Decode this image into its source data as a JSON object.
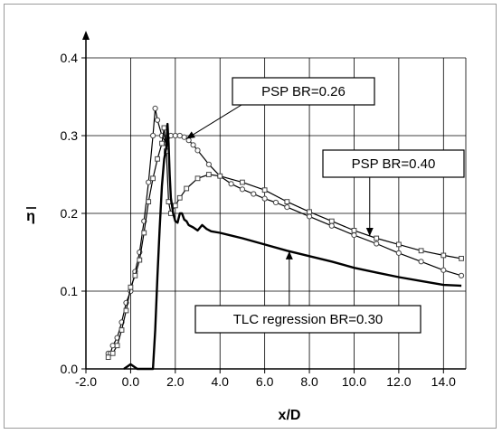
{
  "chart_data": {
    "type": "line",
    "title": "",
    "xlabel": "x/D",
    "ylabel": "η",
    "xlim": [
      -2.0,
      15.0
    ],
    "ylim": [
      0.0,
      0.4
    ],
    "grid": true,
    "xticks": [
      "-2.0",
      "0.0",
      "2.0",
      "4.0",
      "6.0",
      "8.0",
      "10.0",
      "12.0",
      "14.0"
    ],
    "yticks": [
      "0.0",
      "0.1",
      "0.2",
      "0.3",
      "0.4"
    ],
    "series": [
      {
        "name": "PSP BR=0.26",
        "marker": "circle",
        "x": [
          -1.0,
          -0.9,
          -0.8,
          -0.6,
          -0.4,
          -0.2,
          0.0,
          0.2,
          0.4,
          0.6,
          0.8,
          1.0,
          1.1,
          1.2,
          1.4,
          1.6,
          1.8,
          2.0,
          2.2,
          2.4,
          2.6,
          2.8,
          3.0,
          3.5,
          4.0,
          4.5,
          5.0,
          5.5,
          6.0,
          6.5,
          7.0,
          8.0,
          9.0,
          10.0,
          11.0,
          12.0,
          13.0,
          14.0,
          14.8
        ],
        "y": [
          0.02,
          0.02,
          0.03,
          0.04,
          0.06,
          0.085,
          0.1,
          0.125,
          0.15,
          0.19,
          0.24,
          0.3,
          0.335,
          0.32,
          0.3,
          0.29,
          0.3,
          0.3,
          0.3,
          0.298,
          0.294,
          0.288,
          0.281,
          0.263,
          0.248,
          0.238,
          0.231,
          0.225,
          0.219,
          0.214,
          0.208,
          0.196,
          0.184,
          0.172,
          0.161,
          0.149,
          0.138,
          0.127,
          0.12
        ]
      },
      {
        "name": "PSP BR=0.40",
        "marker": "square",
        "x": [
          -1.0,
          -0.8,
          -0.6,
          -0.4,
          -0.2,
          0.0,
          0.2,
          0.4,
          0.6,
          0.8,
          1.0,
          1.2,
          1.4,
          1.5,
          1.6,
          1.7,
          1.8,
          2.0,
          2.2,
          2.5,
          3.0,
          3.5,
          4.0,
          5.0,
          6.0,
          7.0,
          8.0,
          9.0,
          10.0,
          11.0,
          12.0,
          13.0,
          14.0,
          14.8
        ],
        "y": [
          0.015,
          0.02,
          0.03,
          0.05,
          0.075,
          0.105,
          0.12,
          0.14,
          0.175,
          0.215,
          0.245,
          0.27,
          0.29,
          0.31,
          0.28,
          0.215,
          0.2,
          0.21,
          0.22,
          0.232,
          0.245,
          0.25,
          0.248,
          0.24,
          0.23,
          0.215,
          0.202,
          0.19,
          0.178,
          0.168,
          0.16,
          0.152,
          0.146,
          0.142
        ]
      },
      {
        "name": "TLC regression BR=0.30",
        "marker": "none",
        "x": [
          -0.3,
          -0.1,
          0.0,
          0.1,
          0.3,
          1.0,
          1.1,
          1.2,
          1.3,
          1.4,
          1.5,
          1.6,
          1.65,
          1.7,
          1.75,
          1.8,
          1.9,
          2.0,
          2.1,
          2.2,
          2.3,
          2.4,
          2.5,
          2.6,
          2.8,
          3.0,
          3.2,
          3.4,
          3.6,
          4.0,
          5.0,
          6.0,
          7.0,
          8.0,
          9.0,
          10.0,
          11.0,
          12.0,
          13.0,
          14.0,
          14.8
        ],
        "y": [
          0.0,
          0.004,
          0.006,
          0.004,
          0.0,
          0.0,
          0.05,
          0.12,
          0.18,
          0.235,
          0.27,
          0.285,
          0.315,
          0.29,
          0.25,
          0.22,
          0.2,
          0.19,
          0.188,
          0.2,
          0.2,
          0.192,
          0.19,
          0.185,
          0.182,
          0.178,
          0.185,
          0.18,
          0.177,
          0.175,
          0.168,
          0.16,
          0.152,
          0.145,
          0.138,
          0.13,
          0.124,
          0.118,
          0.113,
          0.108,
          0.107
        ]
      }
    ],
    "annotations": [
      {
        "text": "PSP BR=0.26",
        "target_series": 0,
        "target_x": 2.5
      },
      {
        "text": "PSP BR=0.40",
        "target_series": 1,
        "target_x": 10.7
      },
      {
        "text": "TLC regression BR=0.30",
        "target_series": 2,
        "target_x": 7.1
      }
    ]
  }
}
